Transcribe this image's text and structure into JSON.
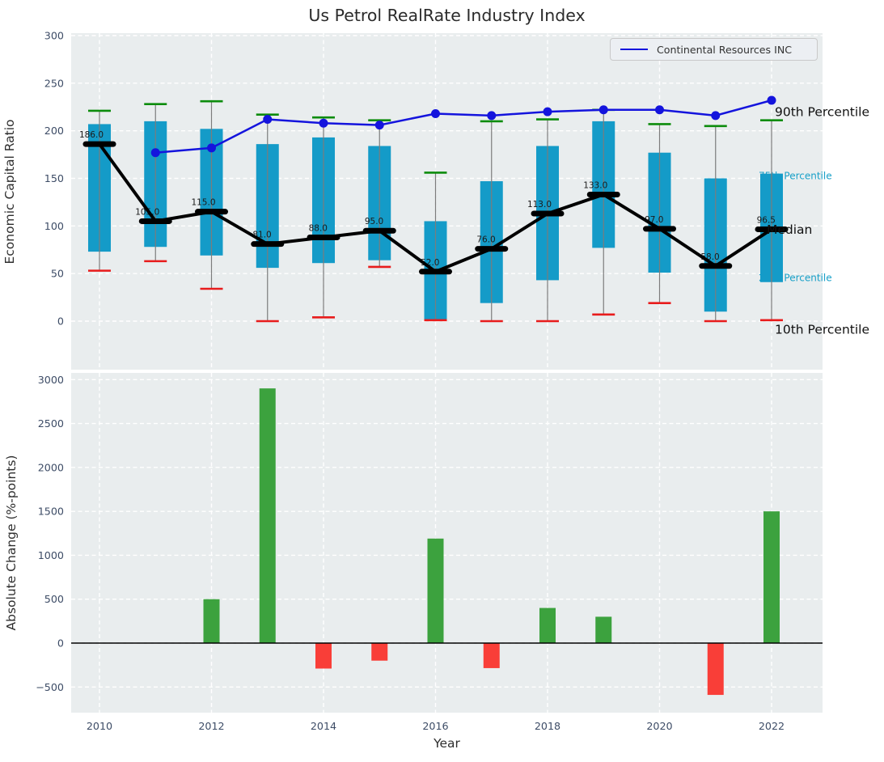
{
  "title": "Us Petrol RealRate Industry Index",
  "colors": {
    "box": "#149bc8",
    "whisker": "#7c7c7c",
    "cap_high": "#0c8c0c",
    "cap_low": "#e81c1c",
    "median": "#000000",
    "company_line": "#1414dd",
    "bar_positive": "#3ca23e",
    "bar_negative": "#f93e38",
    "annotation_major": "#111111",
    "annotation_minor": "#18a0c8",
    "median_label": "#1a1a1a",
    "plot_bg": "#e9edee",
    "grid": "#ffffff",
    "tick": "#3d4c66",
    "zero_line": "#000000"
  },
  "chart_data": [
    {
      "type": "boxplot+line",
      "title": "Us Petrol RealRate Industry Index",
      "ylabel": "Economic Capital Ratio",
      "x": [
        2010,
        2011,
        2012,
        2013,
        2014,
        2015,
        2016,
        2017,
        2018,
        2019,
        2020,
        2021,
        2022
      ],
      "yticks": [
        0,
        50,
        100,
        150,
        200,
        250,
        300
      ],
      "ylim": [
        -51,
        302
      ],
      "grid": true,
      "legend": {
        "label": "Continental Resources INC",
        "position": "upper right"
      },
      "series": [
        {
          "name": "90th Percentile",
          "values": [
            221,
            228,
            231,
            217,
            214,
            211,
            156,
            210,
            212,
            222,
            207,
            205,
            211
          ]
        },
        {
          "name": "75th Percentile",
          "values": [
            207,
            210,
            202,
            186,
            193,
            184,
            105,
            147,
            184,
            210,
            177,
            150,
            155
          ]
        },
        {
          "name": "Median",
          "values": [
            186,
            105,
            115,
            81,
            88,
            95,
            52,
            76,
            113,
            133,
            97,
            58,
            96.5
          ]
        },
        {
          "name": "25th Percentile",
          "values": [
            73,
            78,
            69,
            56,
            61,
            64,
            2,
            19,
            43,
            77,
            51,
            10,
            41
          ]
        },
        {
          "name": "10th Percentile",
          "values": [
            53,
            63,
            34,
            0,
            4,
            57,
            1,
            0,
            0,
            7,
            19,
            0,
            1
          ]
        },
        {
          "name": "Continental Resources INC",
          "values": [
            null,
            177,
            182,
            212,
            208,
            206,
            218,
            216,
            220,
            222,
            222,
            216,
            232
          ]
        }
      ],
      "median_labels": [
        "186.0",
        "105.0",
        "115.0",
        "81.0",
        "88.0",
        "95.0",
        "52.0",
        "76.0",
        "113.0",
        "133.0",
        "97.0",
        "58.0",
        "96.5"
      ],
      "annotations": [
        {
          "text": "90th Percentile",
          "value": 220,
          "style": "major",
          "dx": 4
        },
        {
          "text": "75th Percentile",
          "value": 153,
          "style": "minor",
          "dx": -16
        },
        {
          "text": "Median",
          "value": 96.5,
          "style": "major",
          "dx": -6
        },
        {
          "text": "25th Percentile",
          "value": 46,
          "style": "minor",
          "dx": -16
        },
        {
          "text": "10th Percentile",
          "value": -8.5,
          "style": "major",
          "dx": 4
        }
      ]
    },
    {
      "type": "bar",
      "ylabel": "Absolute Change (%-points)",
      "xlabel": "Year",
      "categories": [
        2010,
        2011,
        2012,
        2013,
        2014,
        2015,
        2016,
        2017,
        2018,
        2019,
        2020,
        2021,
        2022
      ],
      "values": [
        0,
        0,
        500,
        2900,
        -290,
        -200,
        1190,
        -285,
        400,
        300,
        0,
        -590,
        1500
      ],
      "yticks": [
        -500,
        0,
        500,
        1000,
        1500,
        2000,
        2500,
        3000
      ],
      "xticks": [
        2010,
        2012,
        2014,
        2016,
        2018,
        2020,
        2022
      ],
      "ylim": [
        -792,
        3076
      ],
      "grid": true
    }
  ]
}
